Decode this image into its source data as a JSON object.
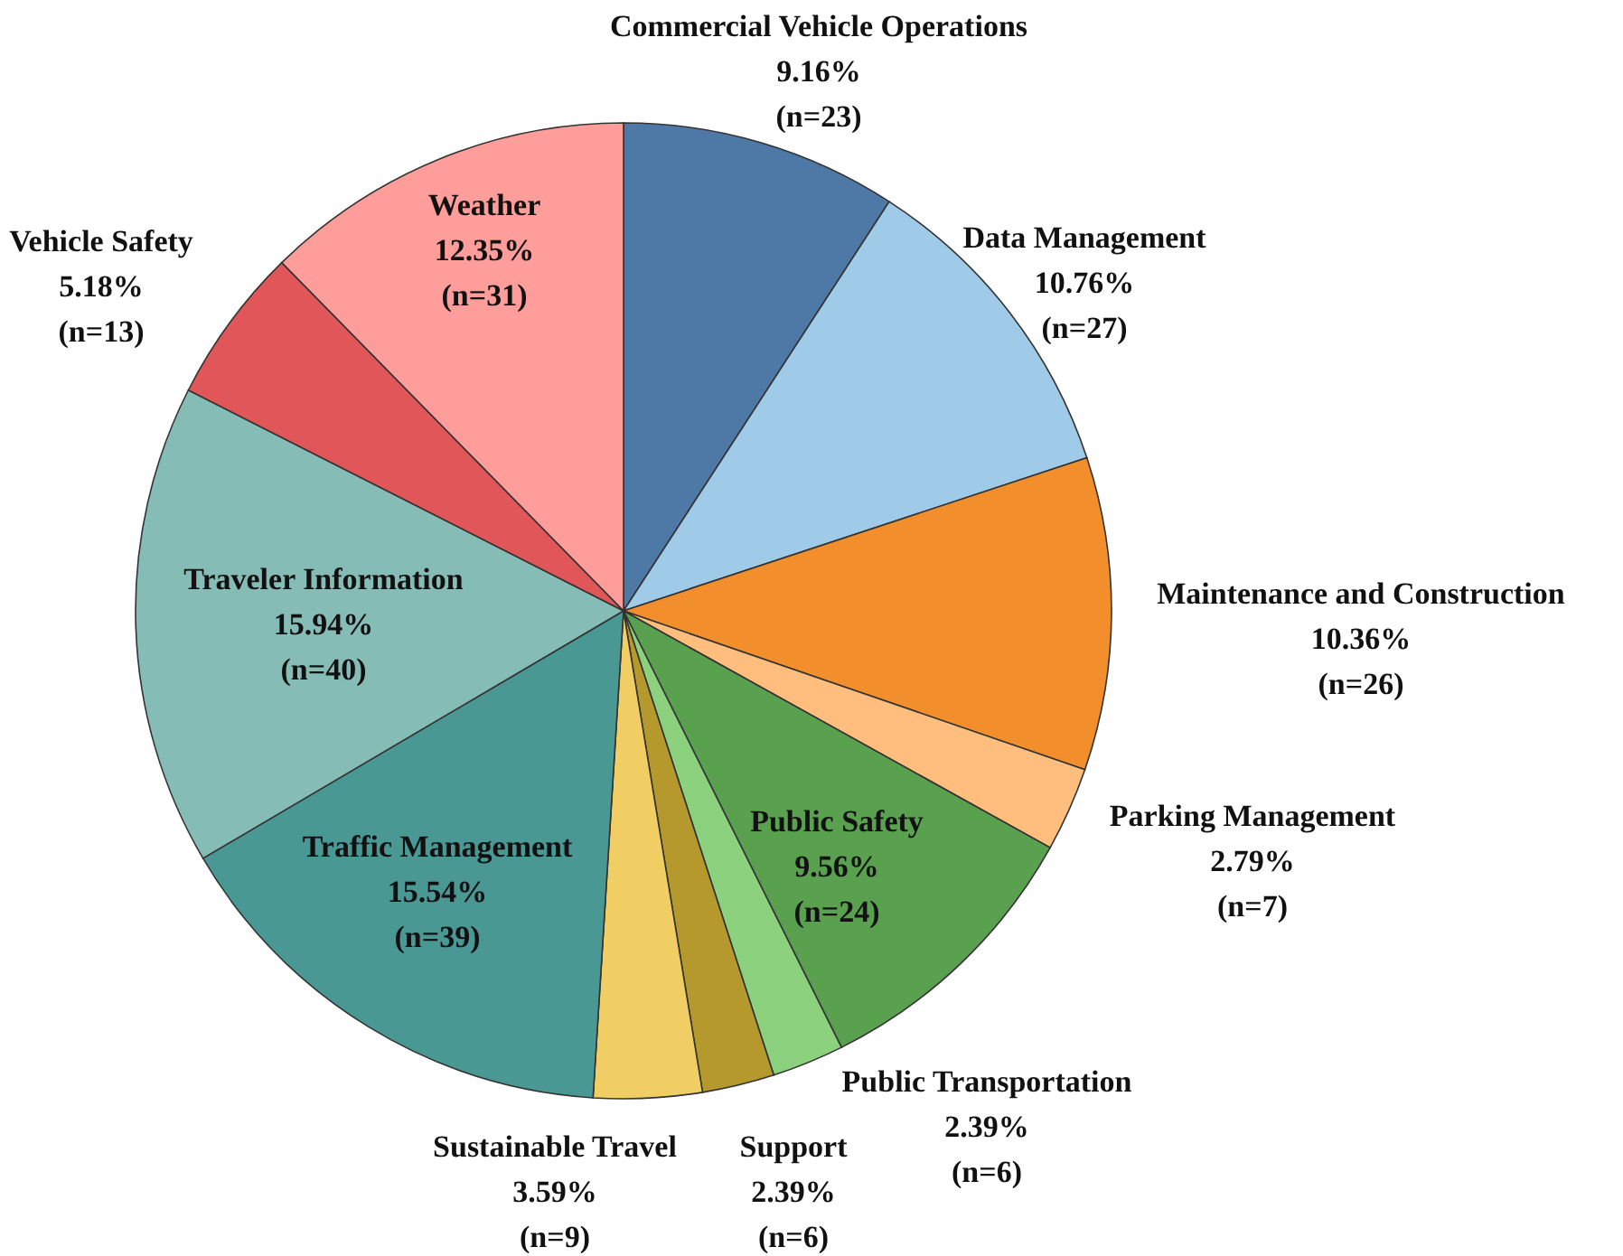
{
  "chart_data": {
    "type": "pie",
    "categories": [
      "Commercial Vehicle Operations",
      "Data Management",
      "Maintenance and Construction",
      "Parking Management",
      "Public Safety",
      "Public Transportation",
      "Support",
      "Sustainable Travel",
      "Traffic Management",
      "Traveler Information",
      "Vehicle Safety",
      "Weather"
    ],
    "values": [
      23,
      27,
      26,
      7,
      24,
      6,
      6,
      9,
      39,
      40,
      13,
      31
    ],
    "value_labels": [
      "9.16%\n(n=23)",
      "10.76%\n(n=27)",
      "10.36%\n(n=26)",
      "2.79%\n(n=7)",
      "9.56%\n(n=24)",
      "2.39%\n(n=6)",
      "2.39%\n(n=6)",
      "3.59%\n(n=9)",
      "15.54%\n(n=39)",
      "15.94%\n(n=40)",
      "5.18%\n(n=13)",
      "12.35%\n(n=31)"
    ],
    "colors": [
      "#4e79a7",
      "#a0cbe8",
      "#f28e2b",
      "#ffbe7d",
      "#59a14f",
      "#8cd17d",
      "#b6992d",
      "#f1ce63",
      "#499894",
      "#86bcb6",
      "#e15759",
      "#ff9d9a"
    ]
  }
}
